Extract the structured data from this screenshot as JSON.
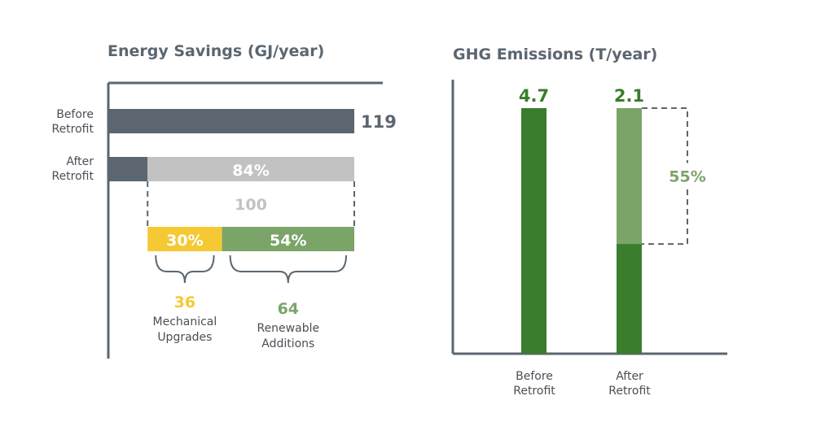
{
  "chart_data": [
    {
      "type": "bar",
      "orientation": "horizontal",
      "title": "Energy Savings (GJ/year)",
      "categories": [
        "Before\nRetrofit",
        "After\nRetrofit"
      ],
      "before_value": 119,
      "after_value": 19,
      "after_savings_value": 100,
      "after_savings_pct_label": "84%",
      "breakdown": [
        {
          "name_lines": [
            "Mechanical",
            "Upgrades"
          ],
          "value": 36,
          "pct_label": "30%",
          "color": "#f5c933"
        },
        {
          "name_lines": [
            "Renewable",
            "Additions"
          ],
          "value": 64,
          "pct_label": "54%",
          "color": "#7ba469"
        }
      ],
      "colors": {
        "bar": "#5b6670",
        "savings": "#c2c2c2"
      }
    },
    {
      "type": "bar",
      "title": "GHG Emissions (T/year)",
      "categories": [
        "Before\nRetrofit",
        "After\nRetrofit"
      ],
      "values": [
        4.7,
        2.1
      ],
      "value_labels": [
        "4.7",
        "2.1"
      ],
      "reduction_pct_label": "55%",
      "colors": {
        "bar": "#3a7d2c",
        "reduction": "#7ba469"
      }
    }
  ],
  "labels": {
    "energy_title": "Energy Savings (GJ/year)",
    "ghg_title": "GHG Emissions (T/year)",
    "before_line1": "Before",
    "before_line2": "Retrofit",
    "after_line1": "After",
    "after_line2": "Retrofit"
  }
}
